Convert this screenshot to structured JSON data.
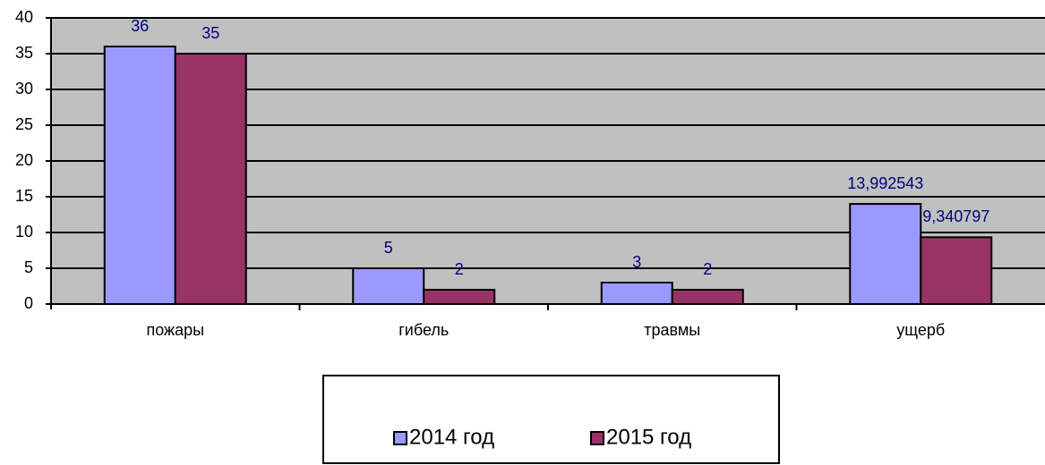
{
  "chart_data": {
    "type": "bar",
    "categories": [
      "пожары",
      "гибель",
      "травмы",
      "ущерб"
    ],
    "series": [
      {
        "name": "2014 год",
        "color": "#9999ff",
        "values": [
          36,
          5,
          3,
          13.992543
        ],
        "value_labels": [
          "36",
          "5",
          "3",
          "13,992543"
        ]
      },
      {
        "name": "2015 год",
        "color": "#993366",
        "values": [
          35,
          2,
          2,
          9.340797
        ],
        "value_labels": [
          "35",
          "2",
          "2",
          "9,340797"
        ]
      }
    ],
    "ylim": [
      0,
      40
    ],
    "yticks": [
      0,
      5,
      10,
      15,
      20,
      25,
      30,
      35,
      40
    ],
    "grid": true,
    "legend": "bottom"
  }
}
